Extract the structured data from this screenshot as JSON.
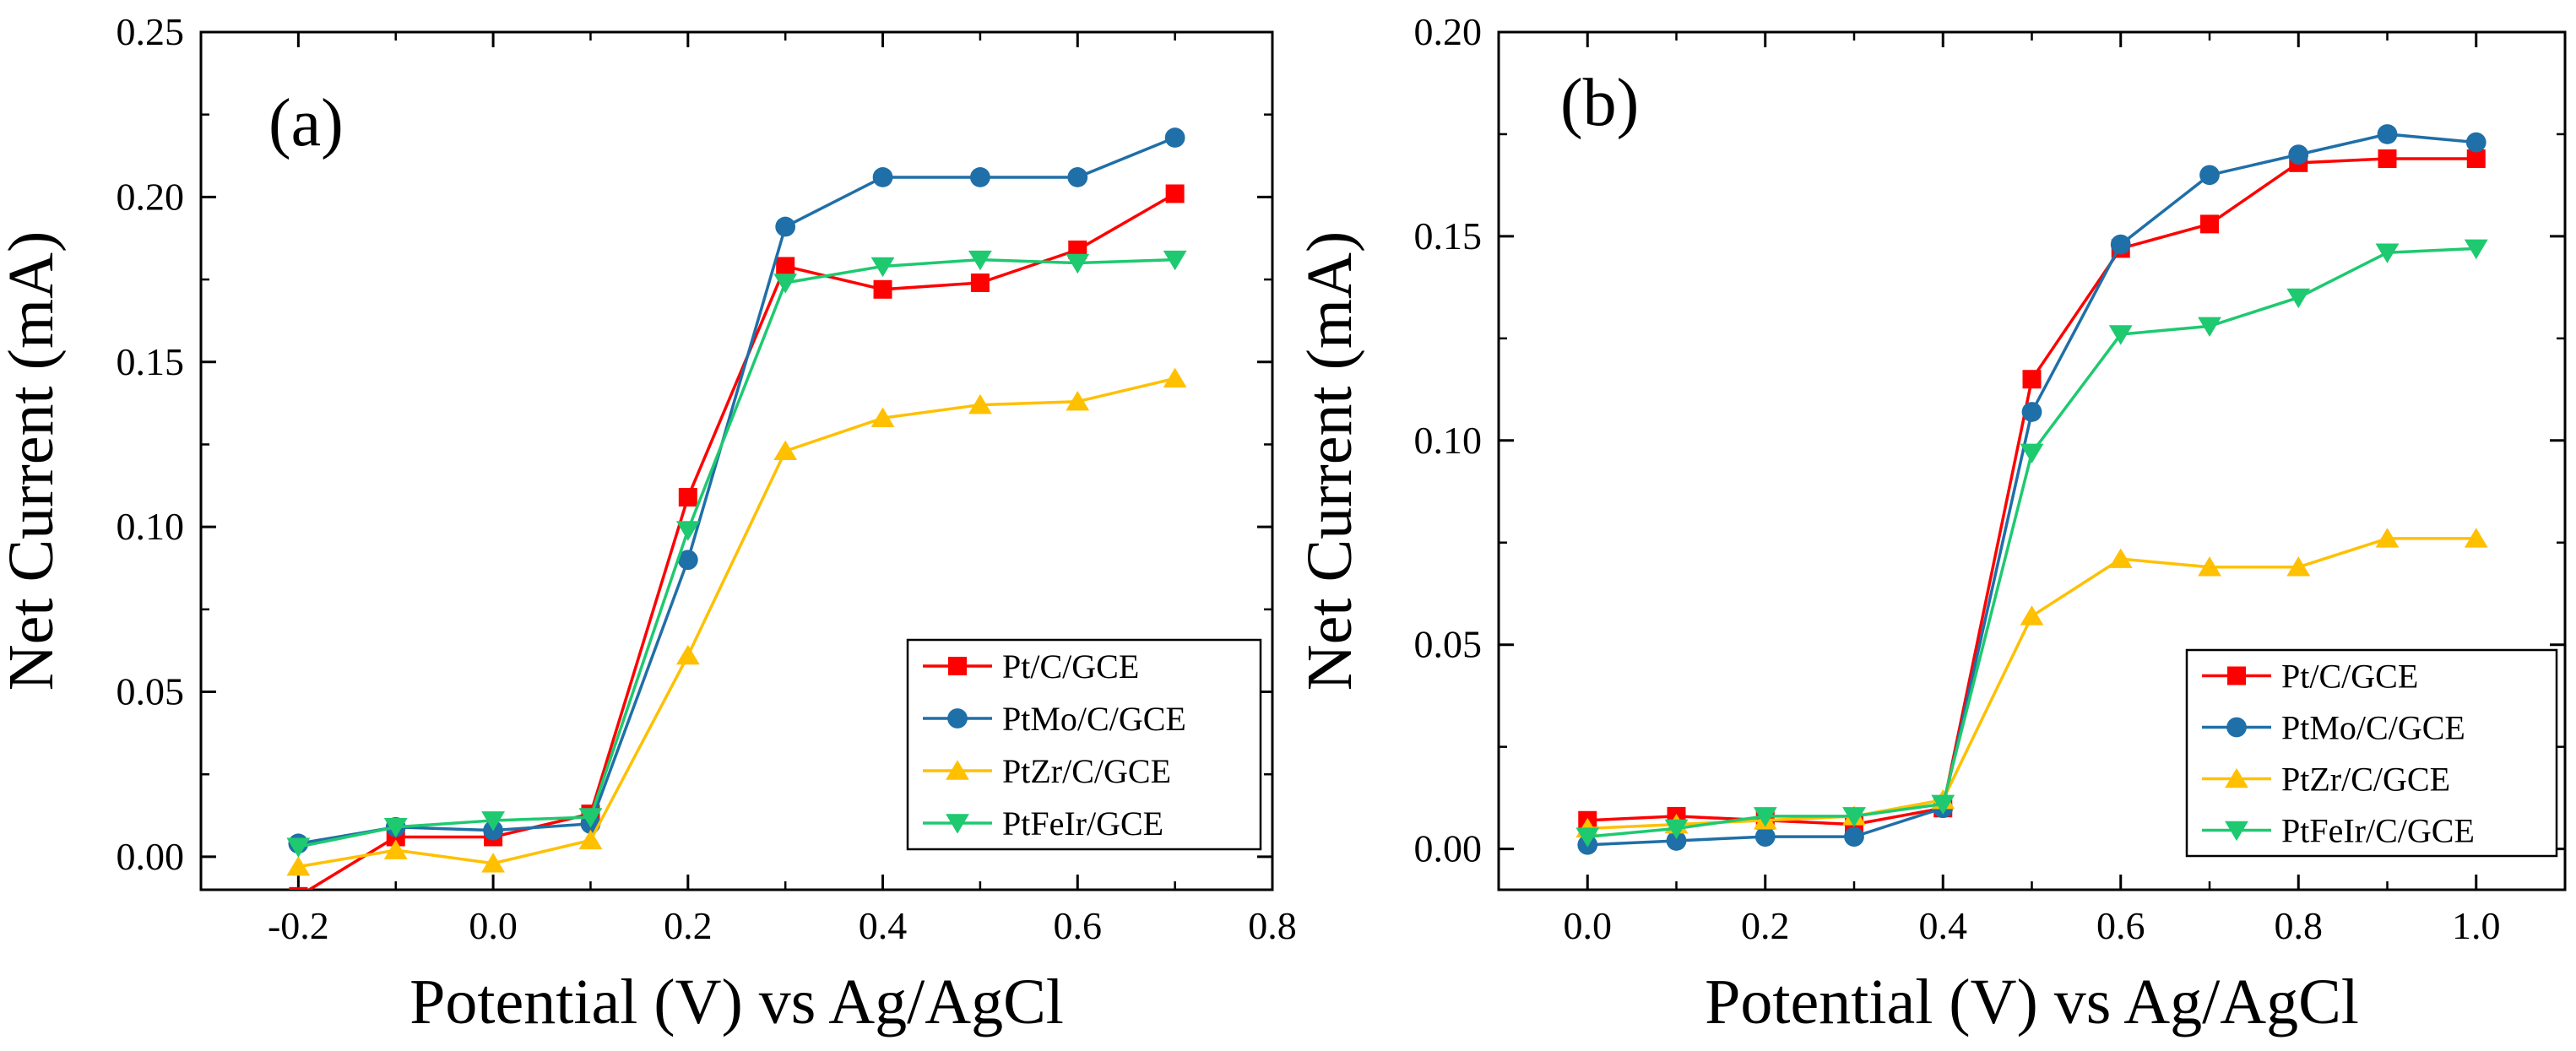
{
  "chart_data": [
    {
      "panel_label": "(a)",
      "type": "line",
      "xlabel": "Potential (V) vs Ag/AgCl",
      "ylabel": "Net Current (mA)",
      "xlim": [
        -0.3,
        0.8
      ],
      "ylim": [
        -0.01,
        0.25
      ],
      "xticks": [
        -0.2,
        0.0,
        0.2,
        0.4,
        0.6,
        0.8
      ],
      "xtick_labels": [
        "-0.2",
        "0.0",
        "0.2",
        "0.4",
        "0.6",
        "0.8"
      ],
      "yticks": [
        0.0,
        0.05,
        0.1,
        0.15,
        0.2,
        0.25
      ],
      "ytick_labels": [
        "0.00",
        "0.05",
        "0.10",
        "0.15",
        "0.20",
        "0.25"
      ],
      "legend_position": "bottom-right",
      "series": [
        {
          "name": "Pt/C/GCE",
          "color": "#ff0000",
          "marker": "square",
          "x": [
            -0.2,
            -0.1,
            0.0,
            0.1,
            0.2,
            0.3,
            0.4,
            0.5,
            0.6,
            0.7
          ],
          "y": [
            -0.012,
            0.006,
            0.006,
            0.013,
            0.109,
            0.179,
            0.172,
            0.174,
            0.184,
            0.201
          ]
        },
        {
          "name": "PtMo/C/GCE",
          "color": "#1f6fa8",
          "marker": "circle",
          "x": [
            -0.2,
            -0.1,
            0.0,
            0.1,
            0.2,
            0.3,
            0.4,
            0.5,
            0.6,
            0.7
          ],
          "y": [
            0.004,
            0.009,
            0.008,
            0.01,
            0.09,
            0.191,
            0.206,
            0.206,
            0.206,
            0.218
          ]
        },
        {
          "name": "PtZr/C/GCE",
          "color": "#ffc000",
          "marker": "triangle-up",
          "x": [
            -0.2,
            -0.1,
            0.0,
            0.1,
            0.2,
            0.3,
            0.4,
            0.5,
            0.6,
            0.7
          ],
          "y": [
            -0.003,
            0.002,
            -0.002,
            0.005,
            0.061,
            0.123,
            0.133,
            0.137,
            0.138,
            0.145
          ]
        },
        {
          "name": "PtFeIr/GCE",
          "color": "#1ec970",
          "marker": "triangle-down",
          "x": [
            -0.2,
            -0.1,
            0.0,
            0.1,
            0.2,
            0.3,
            0.4,
            0.5,
            0.6,
            0.7
          ],
          "y": [
            0.003,
            0.009,
            0.011,
            0.012,
            0.099,
            0.174,
            0.179,
            0.181,
            0.18,
            0.181
          ]
        }
      ]
    },
    {
      "panel_label": "(b)",
      "type": "line",
      "xlabel": "Potential (V) vs Ag/AgCl",
      "ylabel": "Net Current (mA)",
      "xlim": [
        -0.1,
        1.1
      ],
      "ylim": [
        -0.01,
        0.2
      ],
      "xticks": [
        0.0,
        0.2,
        0.4,
        0.6,
        0.8,
        1.0
      ],
      "xtick_labels": [
        "0.0",
        "0.2",
        "0.4",
        "0.6",
        "0.8",
        "1.0"
      ],
      "yticks": [
        0.0,
        0.05,
        0.1,
        0.15,
        0.2
      ],
      "ytick_labels": [
        "0.00",
        "0.05",
        "0.10",
        "0.15",
        "0.20"
      ],
      "legend_position": "bottom-right",
      "series": [
        {
          "name": "Pt/C/GCE",
          "color": "#ff0000",
          "marker": "square",
          "x": [
            0.0,
            0.1,
            0.2,
            0.3,
            0.4,
            0.5,
            0.6,
            0.7,
            0.8,
            0.9,
            1.0
          ],
          "y": [
            0.007,
            0.008,
            0.007,
            0.006,
            0.01,
            0.115,
            0.147,
            0.153,
            0.168,
            0.169,
            0.169
          ]
        },
        {
          "name": "PtMo/C/GCE",
          "color": "#1f6fa8",
          "marker": "circle",
          "x": [
            0.0,
            0.1,
            0.2,
            0.3,
            0.4,
            0.5,
            0.6,
            0.7,
            0.8,
            0.9,
            1.0
          ],
          "y": [
            0.001,
            0.002,
            0.003,
            0.003,
            0.01,
            0.107,
            0.148,
            0.165,
            0.17,
            0.175,
            0.173
          ]
        },
        {
          "name": "PtZr/C/GCE",
          "color": "#ffc000",
          "marker": "triangle-up",
          "x": [
            0.0,
            0.1,
            0.2,
            0.3,
            0.4,
            0.5,
            0.6,
            0.7,
            0.8,
            0.9,
            1.0
          ],
          "y": [
            0.005,
            0.006,
            0.007,
            0.008,
            0.012,
            0.057,
            0.071,
            0.069,
            0.069,
            0.076,
            0.076
          ]
        },
        {
          "name": "PtFeIr/C/GCE",
          "color": "#1ec970",
          "marker": "triangle-down",
          "x": [
            0.0,
            0.1,
            0.2,
            0.3,
            0.4,
            0.5,
            0.6,
            0.7,
            0.8,
            0.9,
            1.0
          ],
          "y": [
            0.003,
            0.005,
            0.008,
            0.008,
            0.011,
            0.097,
            0.126,
            0.128,
            0.135,
            0.146,
            0.147
          ]
        }
      ]
    }
  ]
}
